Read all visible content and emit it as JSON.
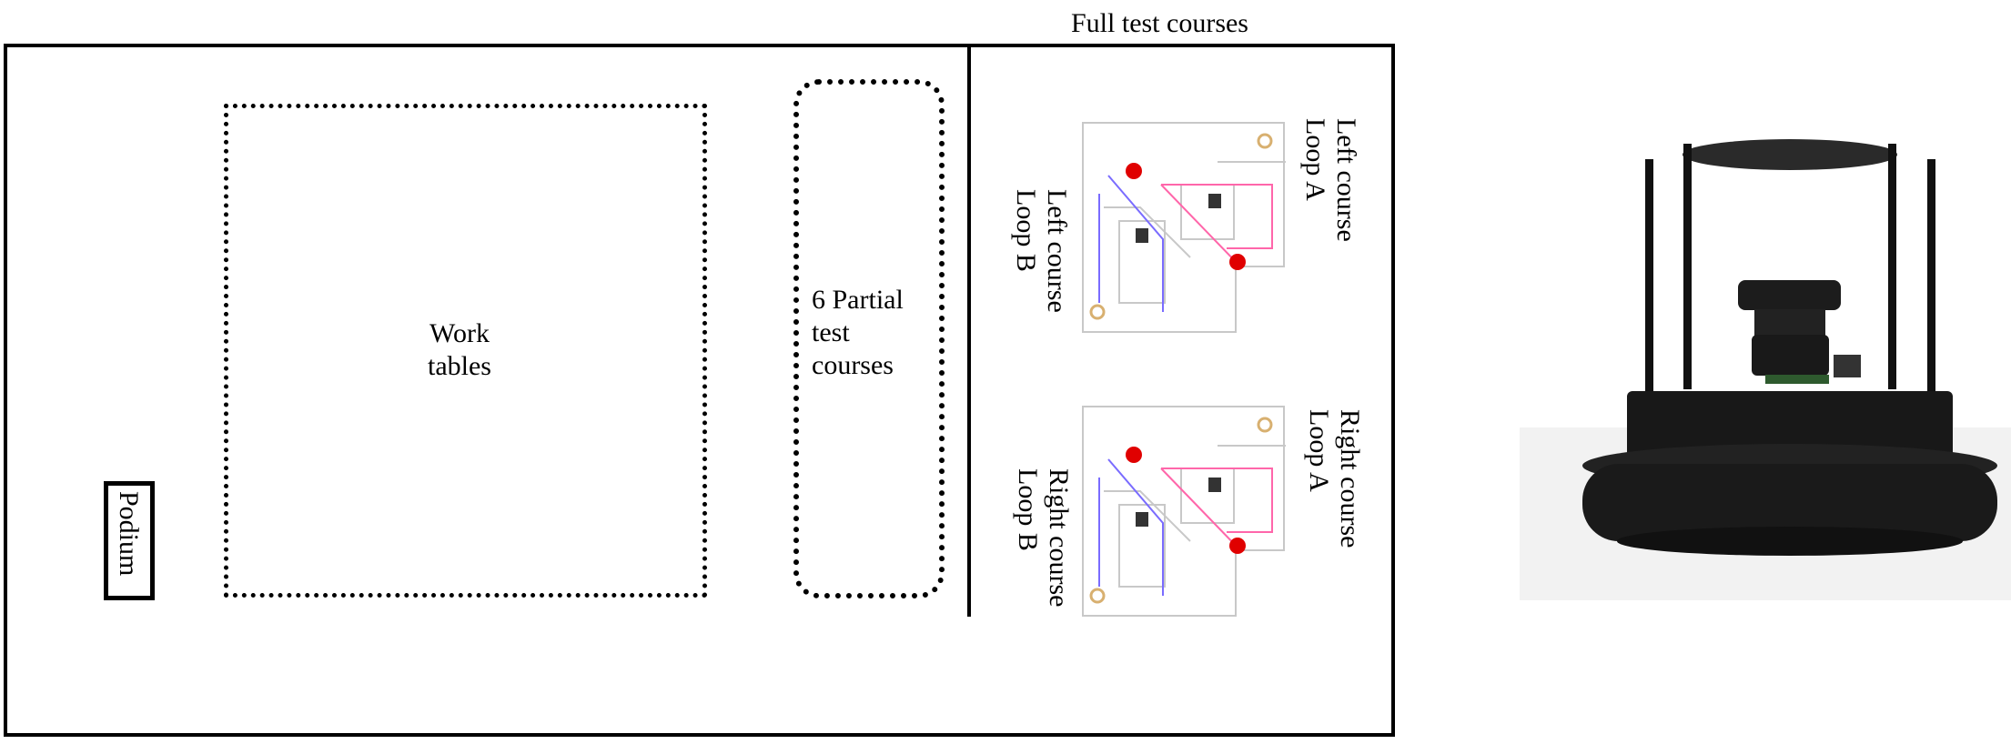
{
  "labels": {
    "full_test_courses": "Full test courses",
    "work_tables_line1": "Work",
    "work_tables_line2": "tables",
    "partial_line1": "6 Partial",
    "partial_line2": "test",
    "partial_line3": "courses",
    "podium": "Podium",
    "left_a_line1": "Left course",
    "left_a_line2": "Loop A",
    "left_b_line1": "Left course",
    "left_b_line2": "Loop B",
    "right_a_line1": "Right course",
    "right_a_line2": "Loop A",
    "right_b_line1": "Right course",
    "right_b_line2": "Loop B"
  },
  "colors": {
    "outline": "#000000",
    "course_border": "#c8c8c8",
    "loop_a": "#ff66aa",
    "loop_b": "#7a6cff",
    "stop_sign": "#e00000",
    "robot_body": "#141414"
  }
}
